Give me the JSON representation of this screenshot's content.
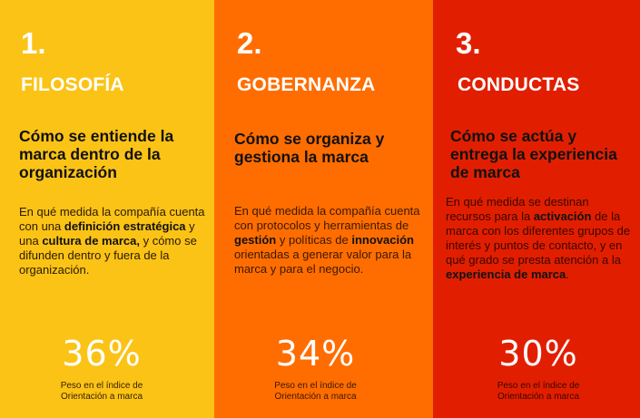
{
  "colors": {
    "filosofia": "#FBC316",
    "gobernanza": "#FF6D00",
    "conductas": "#E11F00",
    "heading_text": "#FFFFFF",
    "body_text": "#111111"
  },
  "columns": [
    {
      "number": "1.",
      "title": "FILOSOFÍA",
      "subtitle": "Cómo se entiende la marca dentro de la organización",
      "description": [
        {
          "text": "En qué medida la compañía cuenta con una ",
          "bold": false
        },
        {
          "text": "definición estratégica",
          "bold": true
        },
        {
          "text": " y una ",
          "bold": false
        },
        {
          "text": "cultura de marca,",
          "bold": true
        },
        {
          "text": " y cómo se difunden dentro y fuera de la organización.",
          "bold": false
        }
      ],
      "percentage": "36%",
      "caption_line1": "Peso en el índice de",
      "caption_line2": "Orientación a marca"
    },
    {
      "number": "2.",
      "title": "GOBERNANZA",
      "subtitle": "Cómo se organiza y gestiona la marca",
      "description": [
        {
          "text": "En qué medida la compañía cuenta con protocolos y herramientas de ",
          "bold": false
        },
        {
          "text": "gestión",
          "bold": true
        },
        {
          "text": " y políticas de ",
          "bold": false
        },
        {
          "text": "innovación",
          "bold": true
        },
        {
          "text": " orientadas a generar valor para la marca y para el negocio.",
          "bold": false
        }
      ],
      "percentage": "34%",
      "caption_line1": "Peso en el índice de",
      "caption_line2": "Orientación a marca"
    },
    {
      "number": "3.",
      "title": "CONDUCTAS",
      "subtitle": "Cómo se actúa y entrega la experiencia de marca",
      "description": [
        {
          "text": "En qué medida se destinan recursos para la ",
          "bold": false
        },
        {
          "text": "activación",
          "bold": true
        },
        {
          "text": " de la marca con los diferentes grupos de interés y puntos de contacto, y en qué grado se presta atención a la ",
          "bold": false
        },
        {
          "text": "experiencia de marca",
          "bold": true
        },
        {
          "text": ".",
          "bold": false
        }
      ],
      "percentage": "30%",
      "caption_line1": "Peso en el índice de",
      "caption_line2": "Orientación a marca"
    }
  ]
}
